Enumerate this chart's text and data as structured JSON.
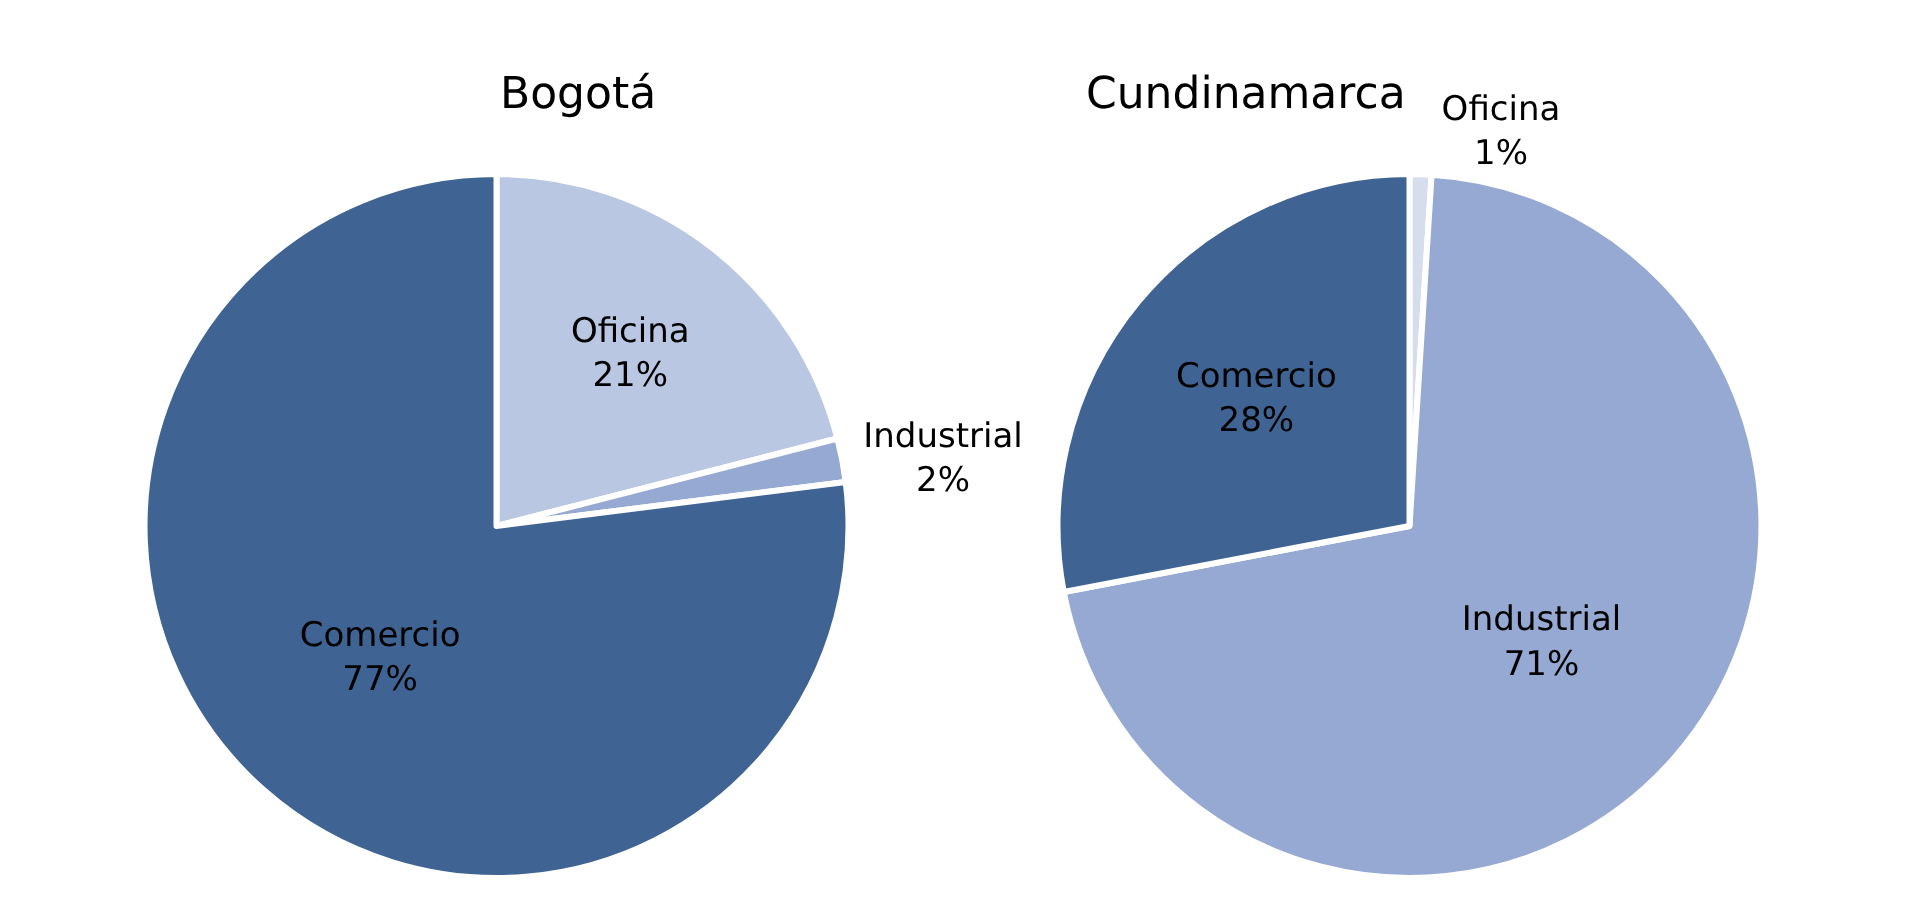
{
  "chart_data": [
    {
      "type": "pie",
      "title": "Bogotá",
      "categories": [
        "Oficina",
        "Industrial",
        "Comercio"
      ],
      "values": [
        21,
        2,
        77
      ],
      "value_labels": [
        "21%",
        "2%",
        "77%"
      ],
      "colors": [
        "#b9c7e2",
        "#95a9d2",
        "#3f6494"
      ]
    },
    {
      "type": "pie",
      "title": "Cundinamarca",
      "categories": [
        "Oficina",
        "Industrial",
        "Comercio"
      ],
      "values": [
        1,
        71,
        28
      ],
      "value_labels": [
        "1%",
        "71%",
        "28%"
      ],
      "colors": [
        "#d6deee",
        "#95a9d2",
        "#3f6494"
      ]
    }
  ]
}
